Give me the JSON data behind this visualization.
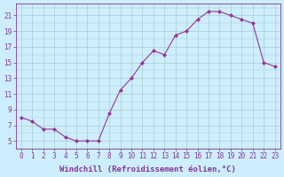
{
  "x": [
    0,
    1,
    2,
    3,
    4,
    5,
    6,
    7,
    8,
    9,
    10,
    11,
    12,
    13,
    14,
    15,
    16,
    17,
    18,
    19,
    20,
    21,
    22,
    23
  ],
  "y": [
    8,
    7.5,
    6.5,
    6.5,
    5.5,
    5,
    5,
    5,
    8.5,
    11.5,
    13,
    15,
    16.5,
    16,
    18.5,
    19,
    20.5,
    21.5,
    21.5,
    21,
    20.5,
    20,
    15,
    14.5
  ],
  "line_color": "#993399",
  "marker_color": "#993399",
  "bg_color": "#cceeff",
  "grid_color": "#aacccc",
  "xlabel": "Windchill (Refroidissement éolien,°C)",
  "ylabel_ticks": [
    5,
    7,
    9,
    11,
    13,
    15,
    17,
    19,
    21
  ],
  "ylim": [
    4.0,
    22.5
  ],
  "xlim": [
    -0.5,
    23.5
  ],
  "font_color": "#883399",
  "tick_fontsize": 5.5,
  "label_fontsize": 6.5
}
